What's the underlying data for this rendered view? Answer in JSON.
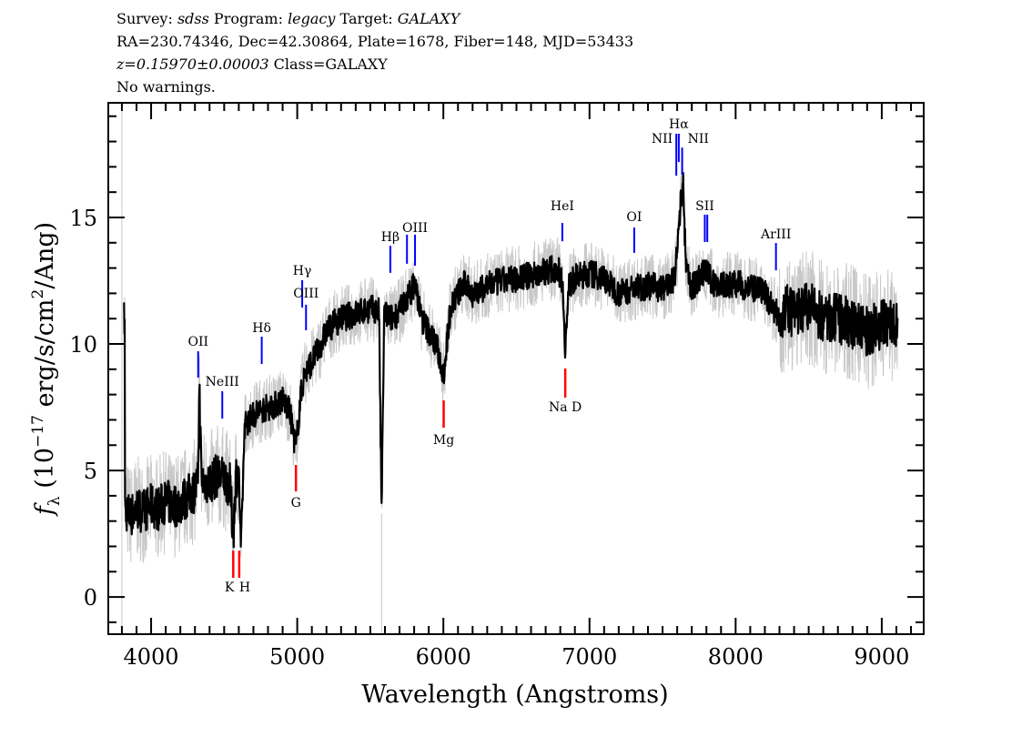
{
  "header": {
    "line1": {
      "survey_label": "Survey:",
      "survey": "sdss",
      "program_label": "Program:",
      "program": "legacy",
      "target_label": "Target:",
      "target": "GALAXY"
    },
    "line2": "RA=230.74346, Dec=42.30864, Plate=1678, Fiber=148, MJD=53433",
    "line3": {
      "redshift": "z=0.15970±0.00003",
      "class": "Class=GALAXY"
    },
    "line4": "No warnings."
  },
  "chart_data": {
    "type": "line",
    "xlabel": "Wavelength (Angstroms)",
    "ylabel": "f_λ (10^-17 erg/s/cm^2/Ang)",
    "xlim": [
      3707,
      9287
    ],
    "ylim": [
      -1.47,
      19.53
    ],
    "x_ticks": [
      4000,
      5000,
      6000,
      7000,
      8000,
      9000
    ],
    "y_ticks": [
      0,
      5,
      10,
      15
    ],
    "grid": false,
    "colors": {
      "spectrum": "#000000",
      "error_band": "#c8c8c8",
      "emission": "#0000ff",
      "absorption": "#ff0000"
    },
    "series": [
      {
        "style": "smoothed-spectrum",
        "x": [
          3820,
          3860,
          3900,
          3950,
          4000,
          4050,
          4100,
          4150,
          4200,
          4250,
          4300,
          4320,
          4330,
          4345,
          4400,
          4450,
          4500,
          4540,
          4562,
          4580,
          4600,
          4615,
          4640,
          4700,
          4750,
          4800,
          4850,
          4900,
          4950,
          4991,
          5020,
          5050,
          5100,
          5150,
          5200,
          5250,
          5300,
          5350,
          5400,
          5450,
          5500,
          5560,
          5577,
          5595,
          5650,
          5700,
          5750,
          5806,
          5850,
          5900,
          5950,
          6002,
          6050,
          6100,
          6150,
          6200,
          6250,
          6300,
          6400,
          6500,
          6600,
          6700,
          6780,
          6815,
          6834,
          6860,
          6900,
          7000,
          7100,
          7200,
          7300,
          7400,
          7500,
          7580,
          7600,
          7615,
          7640,
          7660,
          7700,
          7790,
          7850,
          7900,
          8000,
          8100,
          8200,
          8300,
          8350,
          8400,
          8500,
          8600,
          8700,
          8800,
          8900,
          9000,
          9100
        ],
        "y": [
          3.5,
          3.2,
          3.5,
          3.4,
          3.6,
          3.5,
          3.8,
          3.6,
          3.7,
          4.0,
          4.2,
          4.5,
          8.3,
          4.6,
          4.5,
          4.8,
          4.7,
          4.4,
          2.4,
          4.8,
          4.9,
          1.8,
          6.8,
          7.2,
          7.4,
          7.5,
          7.6,
          7.8,
          7.3,
          5.8,
          7.8,
          8.8,
          9.3,
          9.8,
          10.5,
          10.8,
          11.0,
          11.1,
          11.2,
          11.3,
          11.4,
          11.3,
          3.3,
          11.2,
          11.0,
          11.3,
          11.8,
          12.4,
          11.0,
          10.5,
          10.0,
          8.8,
          11.5,
          12.0,
          12.4,
          12.0,
          12.1,
          12.3,
          12.5,
          12.6,
          12.7,
          12.9,
          13.0,
          12.5,
          9.8,
          12.3,
          12.6,
          12.8,
          12.6,
          12.0,
          12.2,
          12.3,
          12.2,
          12.5,
          13.6,
          15.0,
          16.4,
          13.0,
          12.2,
          12.9,
          12.4,
          12.3,
          12.4,
          12.2,
          12.0,
          11.0,
          11.4,
          11.2,
          11.5,
          11.0,
          11.0,
          10.8,
          10.5,
          10.8,
          10.9
        ]
      }
    ],
    "lines": [
      {
        "label": "OII",
        "kind": "emission",
        "wavelength": 4322,
        "tick": [
          8.67,
          9.71
        ],
        "label_y": 10.1
      },
      {
        "label": "NeIII",
        "kind": "emission",
        "wavelength": 4487,
        "tick": [
          7.05,
          8.13
        ],
        "label_y": 8.53
      },
      {
        "label": "K",
        "kind": "absorption",
        "wavelength": 4562,
        "tick": [
          0.76,
          1.83
        ],
        "label_y": 0.4
      },
      {
        "label": "H",
        "kind": "absorption",
        "wavelength": 4603,
        "tick": [
          0.76,
          1.83
        ],
        "label_y": 0.4
      },
      {
        "label": "Hδ",
        "kind": "emission",
        "wavelength": 4757,
        "tick": [
          9.21,
          10.29
        ],
        "label_y": 10.65
      },
      {
        "label": "G",
        "kind": "absorption",
        "wavelength": 4991,
        "tick": [
          4.17,
          5.22
        ],
        "label_y": 3.74
      },
      {
        "label": "Hγ",
        "kind": "emission",
        "wavelength": 5034,
        "tick": [
          11.44,
          12.52
        ],
        "label_y": 12.91
      },
      {
        "label": "OIII",
        "kind": "emission",
        "wavelength": 5060,
        "tick": [
          10.54,
          11.55
        ],
        "label_y": 12.01
      },
      {
        "label": "Hβ",
        "kind": "emission",
        "wavelength": 5637,
        "tick": [
          12.81,
          13.88
        ],
        "label_y": 14.24
      },
      {
        "label": "",
        "kind": "emission",
        "wavelength": 5751,
        "tick": [
          13.17,
          14.32
        ]
      },
      {
        "label": "OIII",
        "kind": "emission",
        "wavelength": 5806,
        "tick": [
          13.09,
          14.32
        ],
        "label_y": 14.6
      },
      {
        "label": "Mg",
        "kind": "absorption",
        "wavelength": 6002,
        "tick": [
          6.69,
          7.77
        ],
        "label_y": 6.22
      },
      {
        "label": "HeI",
        "kind": "emission",
        "wavelength": 6814,
        "tick": [
          14.06,
          14.78
        ],
        "label_y": 15.47
      },
      {
        "label": "Na D",
        "kind": "absorption",
        "wavelength": 6834,
        "tick": [
          7.88,
          9.03
        ],
        "label_y": 7.52
      },
      {
        "label": "OI",
        "kind": "emission",
        "wavelength": 7306,
        "tick": [
          13.6,
          14.6
        ],
        "label_y": 15.04
      },
      {
        "label": "NII",
        "kind": "emission",
        "wavelength": 7594,
        "tick": [
          16.65,
          18.31
        ],
        "label_y": 18.13,
        "anchor": "end"
      },
      {
        "label": "Hα",
        "kind": "emission",
        "wavelength": 7611,
        "tick": [
          17.19,
          18.31
        ],
        "label_y": 18.71
      },
      {
        "label": "NII",
        "kind": "emission",
        "wavelength": 7634,
        "tick": [
          16.69,
          17.76
        ],
        "label_y": 18.13,
        "anchor": "start"
      },
      {
        "label": "SII",
        "kind": "emission",
        "wavelength": 7789,
        "tick": [
          14.03,
          15.11
        ],
        "label_y": 15.47
      },
      {
        "label": "",
        "kind": "emission",
        "wavelength": 7806,
        "tick": [
          14.03,
          15.11
        ]
      },
      {
        "label": "ArIII",
        "kind": "emission",
        "wavelength": 8276,
        "tick": [
          12.91,
          13.99
        ],
        "label_y": 14.35
      }
    ]
  }
}
